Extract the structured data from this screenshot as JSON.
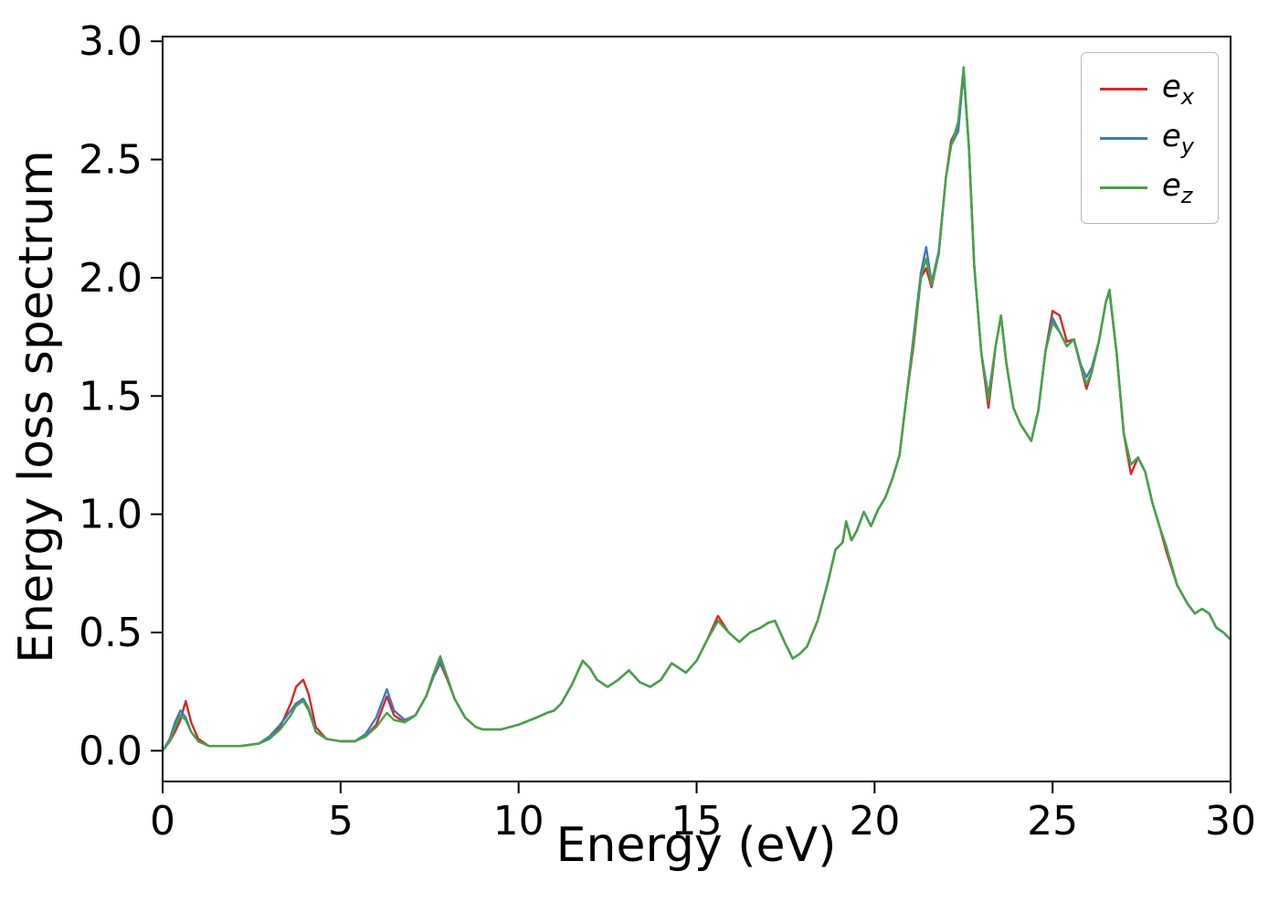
{
  "figure": {
    "background": "#ffffff",
    "axes_edge_color": "#000000"
  },
  "chart_data": {
    "type": "line",
    "title": "",
    "xlabel": "Energy (eV)",
    "ylabel": "Energy loss spectrum",
    "xlim": [
      0,
      30
    ],
    "ylim": [
      -0.13,
      3.02
    ],
    "xticks": [
      0,
      5,
      10,
      15,
      20,
      25,
      30
    ],
    "xtick_labels": [
      "0",
      "5",
      "10",
      "15",
      "20",
      "25",
      "30"
    ],
    "yticks": [
      0.0,
      0.5,
      1.0,
      1.5,
      2.0,
      2.5,
      3.0
    ],
    "ytick_labels": [
      "0.0",
      "0.5",
      "1.0",
      "1.5",
      "2.0",
      "2.5",
      "3.0"
    ],
    "grid": false,
    "legend_position": "upper right",
    "x": [
      0,
      0.2,
      0.35,
      0.5,
      0.65,
      0.8,
      1.0,
      1.3,
      1.7,
      2.2,
      2.7,
      3.0,
      3.3,
      3.6,
      3.75,
      3.95,
      4.1,
      4.3,
      4.6,
      5.0,
      5.4,
      5.7,
      6.0,
      6.15,
      6.3,
      6.5,
      6.8,
      7.1,
      7.4,
      7.6,
      7.8,
      8.0,
      8.2,
      8.5,
      8.8,
      9.0,
      9.5,
      10.0,
      10.5,
      10.8,
      11.0,
      11.2,
      11.5,
      11.8,
      12.0,
      12.2,
      12.5,
      12.8,
      13.1,
      13.4,
      13.7,
      14.0,
      14.3,
      14.5,
      14.7,
      15.0,
      15.3,
      15.6,
      15.9,
      16.2,
      16.5,
      16.8,
      17.0,
      17.2,
      17.5,
      17.7,
      17.9,
      18.1,
      18.4,
      18.7,
      18.9,
      19.1,
      19.2,
      19.35,
      19.5,
      19.7,
      19.9,
      20.1,
      20.3,
      20.5,
      20.7,
      20.9,
      21.1,
      21.3,
      21.45,
      21.6,
      21.8,
      22.0,
      22.15,
      22.35,
      22.5,
      22.65,
      22.8,
      23.0,
      23.2,
      23.4,
      23.55,
      23.7,
      23.9,
      24.1,
      24.4,
      24.6,
      24.8,
      25.0,
      25.2,
      25.4,
      25.6,
      25.8,
      25.95,
      26.1,
      26.3,
      26.5,
      26.6,
      26.8,
      27.0,
      27.2,
      27.4,
      27.6,
      27.8,
      28.0,
      28.2,
      28.5,
      28.8,
      29.0,
      29.2,
      29.4,
      29.6,
      29.8,
      30.0
    ],
    "series": [
      {
        "name": "e_x",
        "symbol": "e",
        "sub": "x",
        "color": "#d62728",
        "values": [
          0.0,
          0.04,
          0.08,
          0.13,
          0.21,
          0.12,
          0.05,
          0.02,
          0.02,
          0.02,
          0.03,
          0.05,
          0.1,
          0.2,
          0.27,
          0.3,
          0.24,
          0.1,
          0.05,
          0.04,
          0.04,
          0.06,
          0.11,
          0.17,
          0.23,
          0.15,
          0.12,
          0.15,
          0.23,
          0.31,
          0.37,
          0.3,
          0.22,
          0.14,
          0.1,
          0.09,
          0.09,
          0.11,
          0.14,
          0.16,
          0.17,
          0.2,
          0.28,
          0.38,
          0.35,
          0.3,
          0.27,
          0.3,
          0.34,
          0.29,
          0.27,
          0.3,
          0.37,
          0.35,
          0.33,
          0.38,
          0.47,
          0.57,
          0.5,
          0.46,
          0.5,
          0.52,
          0.54,
          0.55,
          0.45,
          0.39,
          0.41,
          0.44,
          0.55,
          0.72,
          0.85,
          0.88,
          0.97,
          0.89,
          0.93,
          1.01,
          0.95,
          1.02,
          1.07,
          1.15,
          1.25,
          1.5,
          1.72,
          2.0,
          2.04,
          1.96,
          2.1,
          2.42,
          2.58,
          2.64,
          2.87,
          2.55,
          2.05,
          1.68,
          1.45,
          1.71,
          1.84,
          1.64,
          1.45,
          1.38,
          1.31,
          1.44,
          1.69,
          1.86,
          1.84,
          1.73,
          1.74,
          1.62,
          1.53,
          1.6,
          1.73,
          1.9,
          1.94,
          1.68,
          1.34,
          1.17,
          1.24,
          1.18,
          1.05,
          0.95,
          0.84,
          0.7,
          0.62,
          0.58,
          0.6,
          0.58,
          0.52,
          0.5,
          0.47
        ]
      },
      {
        "name": "e_y",
        "symbol": "e",
        "sub": "y",
        "color": "#3f77c0",
        "values": [
          0.0,
          0.05,
          0.12,
          0.17,
          0.14,
          0.08,
          0.04,
          0.02,
          0.02,
          0.02,
          0.03,
          0.06,
          0.11,
          0.17,
          0.2,
          0.22,
          0.18,
          0.08,
          0.05,
          0.04,
          0.04,
          0.07,
          0.14,
          0.2,
          0.26,
          0.17,
          0.13,
          0.15,
          0.23,
          0.31,
          0.38,
          0.31,
          0.22,
          0.14,
          0.1,
          0.09,
          0.09,
          0.11,
          0.14,
          0.16,
          0.17,
          0.2,
          0.28,
          0.38,
          0.35,
          0.3,
          0.27,
          0.3,
          0.34,
          0.29,
          0.27,
          0.3,
          0.37,
          0.35,
          0.33,
          0.38,
          0.47,
          0.55,
          0.5,
          0.46,
          0.5,
          0.52,
          0.54,
          0.55,
          0.45,
          0.39,
          0.41,
          0.44,
          0.55,
          0.72,
          0.85,
          0.88,
          0.97,
          0.89,
          0.93,
          1.01,
          0.95,
          1.02,
          1.07,
          1.15,
          1.25,
          1.5,
          1.76,
          2.02,
          2.13,
          1.98,
          2.11,
          2.42,
          2.56,
          2.62,
          2.87,
          2.55,
          2.05,
          1.68,
          1.5,
          1.71,
          1.84,
          1.64,
          1.45,
          1.38,
          1.31,
          1.44,
          1.69,
          1.83,
          1.77,
          1.71,
          1.74,
          1.63,
          1.58,
          1.62,
          1.73,
          1.9,
          1.94,
          1.68,
          1.34,
          1.21,
          1.24,
          1.18,
          1.05,
          0.95,
          0.86,
          0.7,
          0.62,
          0.58,
          0.6,
          0.58,
          0.52,
          0.5,
          0.47
        ]
      },
      {
        "name": "e_z",
        "symbol": "e",
        "sub": "z",
        "color": "#44a344",
        "values": [
          0.0,
          0.04,
          0.1,
          0.15,
          0.13,
          0.08,
          0.04,
          0.02,
          0.02,
          0.02,
          0.03,
          0.05,
          0.09,
          0.15,
          0.19,
          0.21,
          0.17,
          0.08,
          0.05,
          0.04,
          0.04,
          0.06,
          0.1,
          0.13,
          0.16,
          0.13,
          0.12,
          0.15,
          0.23,
          0.32,
          0.4,
          0.31,
          0.22,
          0.14,
          0.1,
          0.09,
          0.09,
          0.11,
          0.14,
          0.16,
          0.17,
          0.2,
          0.28,
          0.38,
          0.35,
          0.3,
          0.27,
          0.3,
          0.34,
          0.29,
          0.27,
          0.3,
          0.37,
          0.35,
          0.33,
          0.38,
          0.47,
          0.55,
          0.5,
          0.46,
          0.5,
          0.52,
          0.54,
          0.55,
          0.45,
          0.39,
          0.41,
          0.44,
          0.55,
          0.72,
          0.85,
          0.88,
          0.97,
          0.89,
          0.93,
          1.01,
          0.95,
          1.02,
          1.07,
          1.15,
          1.25,
          1.5,
          1.74,
          2.0,
          2.08,
          1.97,
          2.1,
          2.42,
          2.56,
          2.66,
          2.89,
          2.55,
          2.05,
          1.68,
          1.48,
          1.71,
          1.84,
          1.64,
          1.45,
          1.38,
          1.31,
          1.44,
          1.69,
          1.81,
          1.77,
          1.71,
          1.74,
          1.62,
          1.55,
          1.6,
          1.73,
          1.9,
          1.95,
          1.68,
          1.34,
          1.21,
          1.24,
          1.18,
          1.05,
          0.95,
          0.86,
          0.7,
          0.62,
          0.58,
          0.6,
          0.58,
          0.52,
          0.5,
          0.47
        ]
      }
    ]
  }
}
